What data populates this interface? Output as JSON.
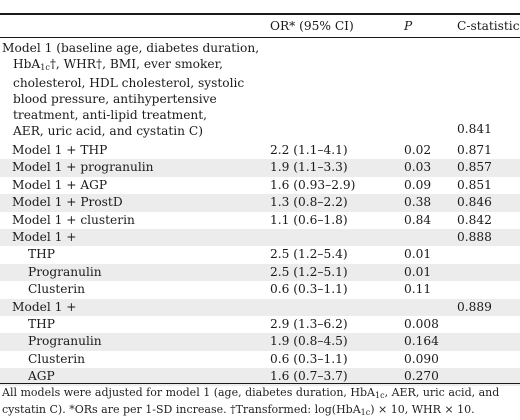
{
  "header": {
    "or": "OR* (95% CI)",
    "p": "P",
    "c": "C-statistic"
  },
  "model1": {
    "line1": "Model 1 (baseline age, diabetes duration,",
    "line2_pre": "HbA",
    "line2_sub": "1c",
    "line2_post": "†, WHR†, BMI, ever smoker,",
    "line3": "cholesterol, HDL cholesterol, systolic",
    "line4": "blood pressure, antihypertensive",
    "line5": "treatment, anti-lipid treatment,",
    "line6": "AER, uric acid, and cystatin C)",
    "c": "0.841"
  },
  "rows": [
    {
      "label": "Model 1 + THP",
      "or": "2.2 (1.1–4.1)",
      "p": "0.02",
      "c": "0.871"
    },
    {
      "label": "Model 1 + progranulin",
      "or": "1.9 (1.1–3.3)",
      "p": "0.03",
      "c": "0.857"
    },
    {
      "label": "Model 1 + AGP",
      "or": "1.6 (0.93–2.9)",
      "p": "0.09",
      "c": "0.851"
    },
    {
      "label": "Model 1 + ProstD",
      "or": "1.3 (0.8–2.2)",
      "p": "0.38",
      "c": "0.846"
    },
    {
      "label": "Model 1 + clusterin",
      "or": "1.1 (0.6–1.8)",
      "p": "0.84",
      "c": "0.842"
    },
    {
      "label": "Model 1 +",
      "or": "",
      "p": "",
      "c": "0.888"
    },
    {
      "label": "THP",
      "or": "2.5 (1.2–5.4)",
      "p": "0.01",
      "c": ""
    },
    {
      "label": "Progranulin",
      "or": "2.5 (1.2–5.1)",
      "p": "0.01",
      "c": ""
    },
    {
      "label": "Clusterin",
      "or": "0.6 (0.3–1.1)",
      "p": "0.11",
      "c": ""
    },
    {
      "label": "Model 1 +",
      "or": "",
      "p": "",
      "c": "0.889"
    },
    {
      "label": "THP",
      "or": "2.9 (1.3–6.2)",
      "p": "0.008",
      "c": ""
    },
    {
      "label": "Progranulin",
      "or": "1.9 (0.8–4.5)",
      "p": "0.164",
      "c": ""
    },
    {
      "label": "Clusterin",
      "or": "0.6 (0.3–1.1)",
      "p": "0.090",
      "c": ""
    },
    {
      "label": "AGP",
      "or": "1.6 (0.7–3.7)",
      "p": "0.270",
      "c": ""
    }
  ],
  "footnote": {
    "part1": "All models were adjusted for model 1 (age, diabetes duration, HbA",
    "sub1": "1c",
    "part2": ", AER, uric acid, and cystatin C). *ORs are per 1-SD increase. †Transformed: log(HbA",
    "sub2": "1c",
    "part3": ") × 10, WHR × 10."
  }
}
